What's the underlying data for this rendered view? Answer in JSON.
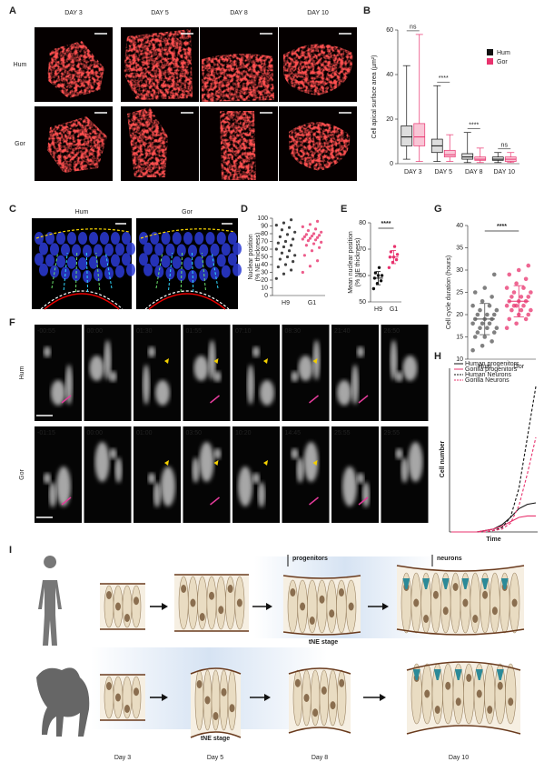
{
  "A": {
    "label": "A",
    "columns": [
      "DAY 3",
      "DAY 5",
      "DAY 8",
      "DAY 10"
    ],
    "rows": [
      "Hum",
      "Gor"
    ]
  },
  "B": {
    "label": "B",
    "ylabel": "Cell apical surface area (µm²)",
    "ylim": [
      0,
      60
    ],
    "yticks": [
      0,
      20,
      40,
      60
    ],
    "categories": [
      "DAY 3",
      "DAY 5",
      "DAY 8",
      "DAY 10"
    ],
    "series": [
      {
        "name": "Hum",
        "color": "#111111",
        "boxes": [
          [
            2,
            8,
            12,
            17,
            44
          ],
          [
            1,
            5,
            8,
            11,
            35
          ],
          [
            0.5,
            2,
            3,
            4.5,
            14
          ],
          [
            0.5,
            1.5,
            2,
            3,
            5
          ]
        ]
      },
      {
        "name": "Gor",
        "color": "#e8336e",
        "boxes": [
          [
            1,
            8,
            12,
            18,
            58
          ],
          [
            1,
            3,
            4,
            6,
            13
          ],
          [
            0.5,
            1.5,
            2,
            3,
            7
          ],
          [
            0.5,
            1,
            2,
            3,
            5
          ]
        ]
      }
    ],
    "significance": [
      "ns",
      "****",
      "****",
      "ns"
    ]
  },
  "C": {
    "label": "C",
    "titles": [
      "Hum",
      "Gor"
    ]
  },
  "D": {
    "label": "D",
    "ylabel": [
      "Nuclear position",
      "(% NE thickness)"
    ],
    "ylim": [
      0,
      100
    ],
    "yticks": [
      0,
      10,
      20,
      30,
      40,
      50,
      60,
      70,
      80,
      90,
      100
    ],
    "categories": [
      "H9",
      "G1"
    ],
    "colors": [
      "#111111",
      "#e8336e"
    ],
    "values": [
      [
        22,
        28,
        33,
        37,
        40,
        44,
        47,
        50,
        52,
        55,
        58,
        60,
        63,
        65,
        68,
        70,
        73,
        76,
        79,
        82,
        85,
        88,
        91,
        94,
        98
      ],
      [
        30,
        38,
        45,
        52,
        58,
        62,
        65,
        67,
        69,
        71,
        72,
        73,
        74,
        75,
        76,
        77,
        78,
        79,
        80,
        82,
        84,
        86,
        89,
        92,
        96
      ]
    ]
  },
  "E": {
    "label": "E",
    "ylabel": [
      "Mean nuclear position",
      "(% NE thickness)"
    ],
    "ylim": [
      50,
      80
    ],
    "yticks": [
      50,
      60,
      70,
      80
    ],
    "categories": [
      "H9",
      "G1"
    ],
    "colors": [
      "#111111",
      "#e8336e"
    ],
    "values": [
      [
        55,
        57,
        58,
        59,
        60,
        60,
        61,
        63
      ],
      [
        63,
        65,
        66,
        67,
        67,
        68,
        69,
        71
      ]
    ],
    "mean": [
      59,
      67
    ],
    "sd": [
      2.5,
      2.5
    ],
    "significance": "****"
  },
  "G": {
    "label": "G",
    "ylabel": "Cell cycle duration (hours)",
    "ylim": [
      10,
      40
    ],
    "yticks": [
      10,
      15,
      20,
      25,
      30,
      35,
      40
    ],
    "categories": [
      "Hum",
      "Gor"
    ],
    "colors": [
      "#555555",
      "#e8336e"
    ],
    "values": [
      [
        12,
        13,
        14,
        15,
        15,
        16,
        16,
        17,
        17,
        17,
        18,
        18,
        18,
        19,
        19,
        19,
        20,
        20,
        20,
        21,
        21,
        22,
        22,
        23,
        24,
        25,
        26,
        29
      ],
      [
        17,
        18,
        19,
        19,
        20,
        20,
        21,
        21,
        21,
        22,
        22,
        22,
        22,
        23,
        23,
        23,
        24,
        24,
        24,
        25,
        25,
        26,
        26,
        27,
        28,
        29,
        30,
        31
      ]
    ],
    "mean": [
      19,
      23
    ],
    "sd": [
      3.5,
      3.5
    ],
    "significance": "****"
  },
  "F": {
    "label": "F",
    "rows": [
      {
        "name": "Hum",
        "times": [
          "-00:55",
          "00:00",
          "01:30",
          "01:55",
          "07:10",
          "08:30",
          "21:40",
          "26:50"
        ]
      },
      {
        "name": "Gor",
        "times": [
          "-01:15",
          "00:00",
          "01:00",
          "03:50",
          "10:20",
          "14:45",
          "25:55",
          "29:55"
        ]
      }
    ]
  },
  "H": {
    "label": "H",
    "xlabel": "Time",
    "ylabel": "Cell number",
    "series": [
      {
        "name": "Human progenitors",
        "color": "#111111",
        "dashed": false,
        "values": [
          0,
          0,
          0,
          0,
          1,
          2,
          5,
          10,
          16,
          19,
          20
        ]
      },
      {
        "name": "Gorilla progenitors",
        "color": "#e8336e",
        "dashed": false,
        "values": [
          0,
          0,
          0,
          0,
          1,
          2,
          4,
          7,
          10,
          11,
          11
        ]
      },
      {
        "name": "Human Neurons",
        "color": "#111111",
        "dashed": true,
        "values": [
          0,
          0,
          0,
          0,
          0,
          1,
          3,
          10,
          30,
          65,
          100
        ]
      },
      {
        "name": "Gorilla Neurons",
        "color": "#e8336e",
        "dashed": true,
        "values": [
          0,
          0,
          0,
          0,
          0,
          1,
          2,
          6,
          18,
          40,
          65
        ]
      }
    ]
  },
  "I": {
    "label": "I",
    "top_labels": [
      "progenitors",
      "neurons"
    ],
    "stages": [
      "tNE stage",
      "tNE stage"
    ],
    "days": [
      "Day 3",
      "Day 5",
      "Day 8",
      "Day 10"
    ]
  }
}
